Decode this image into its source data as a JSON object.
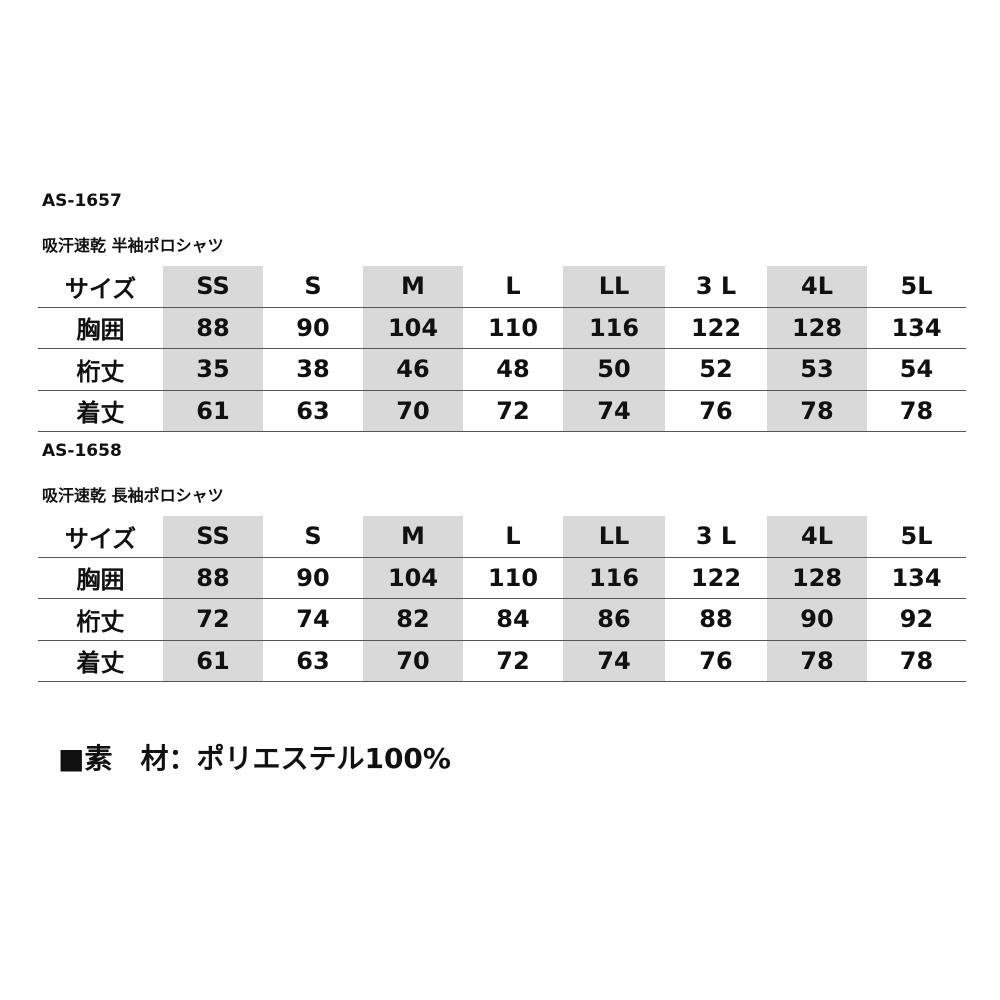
{
  "tables": [
    {
      "code": "AS-1657",
      "title": "吸汗速乾 半袖ポロシャツ",
      "header": {
        "label": "サイズ",
        "sizes": [
          "SS",
          "S",
          "M",
          "L",
          "LL",
          "3 L",
          "4L",
          "5L"
        ]
      },
      "rows": [
        {
          "label": "胸囲",
          "values": [
            "88",
            "90",
            "104",
            "110",
            "116",
            "122",
            "128",
            "134"
          ]
        },
        {
          "label": "桁丈",
          "values": [
            "35",
            "38",
            "46",
            "48",
            "50",
            "52",
            "53",
            "54"
          ]
        },
        {
          "label": "着丈",
          "values": [
            "61",
            "63",
            "70",
            "72",
            "74",
            "76",
            "78",
            "78"
          ]
        }
      ]
    },
    {
      "code": "AS-1658",
      "title": "吸汗速乾 長袖ポロシャツ",
      "header": {
        "label": "サイズ",
        "sizes": [
          "SS",
          "S",
          "M",
          "L",
          "LL",
          "3 L",
          "4L",
          "5L"
        ]
      },
      "rows": [
        {
          "label": "胸囲",
          "values": [
            "88",
            "90",
            "104",
            "110",
            "116",
            "122",
            "128",
            "134"
          ]
        },
        {
          "label": "桁丈",
          "values": [
            "72",
            "74",
            "82",
            "84",
            "86",
            "88",
            "90",
            "92"
          ]
        },
        {
          "label": "着丈",
          "values": [
            "61",
            "63",
            "70",
            "72",
            "74",
            "76",
            "78",
            "78"
          ]
        }
      ]
    }
  ],
  "material": "■素　材：ポリエステル100%",
  "colors": {
    "shade": "#d9d9d9",
    "rule": "#555555"
  }
}
